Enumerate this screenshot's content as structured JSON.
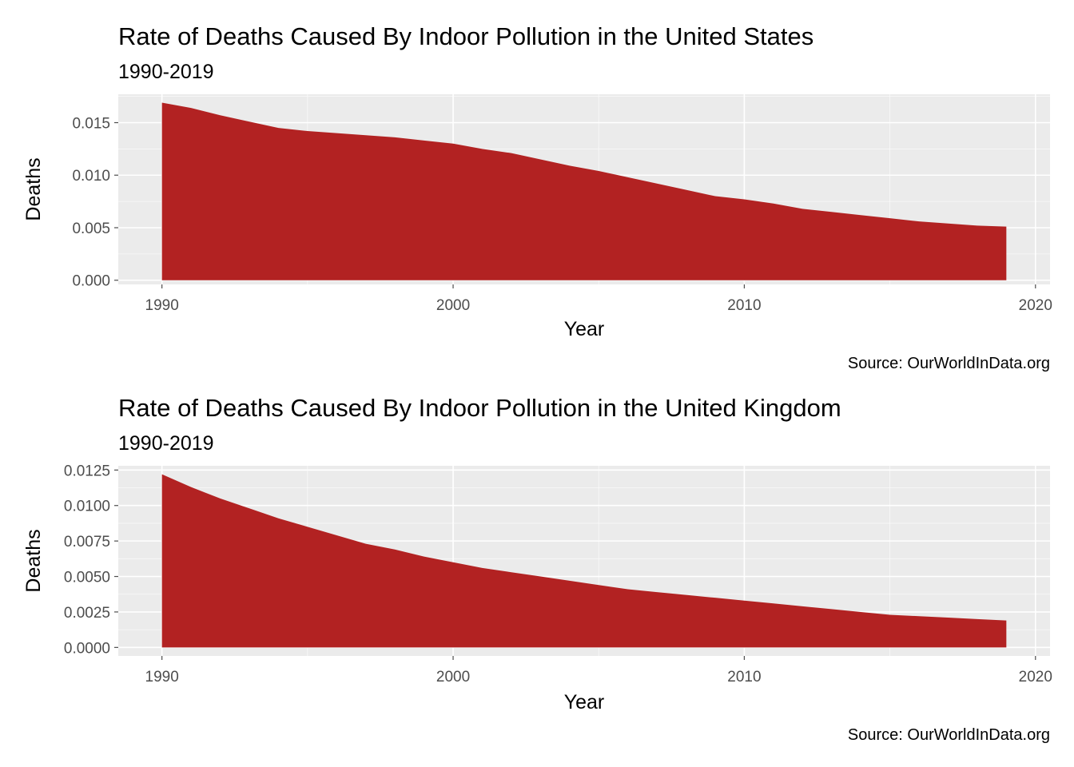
{
  "colors": {
    "fill": "#b22222",
    "panel": "#ebebeb",
    "grid_major": "#ffffff",
    "tick": "#4d4d4d"
  },
  "chart_data": [
    {
      "type": "area",
      "title": "Rate of Deaths Caused By Indoor Pollution in the United States",
      "subtitle": "1990-2019",
      "xlabel": "Year",
      "ylabel": "Deaths",
      "caption": "Source: OurWorldInData.org",
      "xlim": [
        1988.5,
        2020.5
      ],
      "ylim": [
        -0.0004,
        0.0177
      ],
      "x_ticks": [
        1990,
        2000,
        2010,
        2020
      ],
      "x_tick_labels": [
        "1990",
        "2000",
        "2010",
        "2020"
      ],
      "y_ticks": [
        0,
        0.005,
        0.01,
        0.015
      ],
      "y_tick_labels": [
        "0.000",
        "0.005",
        "0.010",
        "0.015"
      ],
      "grid": true,
      "x": [
        1990,
        1991,
        1992,
        1993,
        1994,
        1995,
        1996,
        1997,
        1998,
        1999,
        2000,
        2001,
        2002,
        2003,
        2004,
        2005,
        2006,
        2007,
        2008,
        2009,
        2010,
        2011,
        2012,
        2013,
        2014,
        2015,
        2016,
        2017,
        2018,
        2019
      ],
      "values": [
        0.0169,
        0.0164,
        0.0157,
        0.0151,
        0.0145,
        0.0142,
        0.014,
        0.0138,
        0.0136,
        0.0133,
        0.013,
        0.0125,
        0.0121,
        0.0115,
        0.0109,
        0.0104,
        0.0098,
        0.0092,
        0.0086,
        0.008,
        0.0077,
        0.0073,
        0.0068,
        0.0065,
        0.0062,
        0.0059,
        0.0056,
        0.0054,
        0.0052,
        0.0051
      ]
    },
    {
      "type": "area",
      "title": "Rate of Deaths Caused By Indoor Pollution in the United Kingdom",
      "subtitle": "1990-2019",
      "xlabel": "Year",
      "ylabel": "Deaths",
      "caption": "Source: OurWorldInData.org",
      "xlim": [
        1988.5,
        2020.5
      ],
      "ylim": [
        -0.0006,
        0.0128
      ],
      "x_ticks": [
        1990,
        2000,
        2010,
        2020
      ],
      "x_tick_labels": [
        "1990",
        "2000",
        "2010",
        "2020"
      ],
      "y_ticks": [
        0,
        0.0025,
        0.005,
        0.0075,
        0.01,
        0.0125
      ],
      "y_tick_labels": [
        "0.0000",
        "0.0025",
        "0.0050",
        "0.0075",
        "0.0100",
        "0.0125"
      ],
      "grid": true,
      "x": [
        1990,
        1991,
        1992,
        1993,
        1994,
        1995,
        1996,
        1997,
        1998,
        1999,
        2000,
        2001,
        2002,
        2003,
        2004,
        2005,
        2006,
        2007,
        2008,
        2009,
        2010,
        2011,
        2012,
        2013,
        2014,
        2015,
        2016,
        2017,
        2018,
        2019
      ],
      "values": [
        0.0122,
        0.0113,
        0.0105,
        0.0098,
        0.0091,
        0.0085,
        0.0079,
        0.0073,
        0.0069,
        0.0064,
        0.006,
        0.0056,
        0.0053,
        0.005,
        0.0047,
        0.0044,
        0.0041,
        0.0039,
        0.0037,
        0.0035,
        0.0033,
        0.0031,
        0.0029,
        0.0027,
        0.0025,
        0.0023,
        0.0022,
        0.0021,
        0.002,
        0.0019
      ]
    }
  ]
}
